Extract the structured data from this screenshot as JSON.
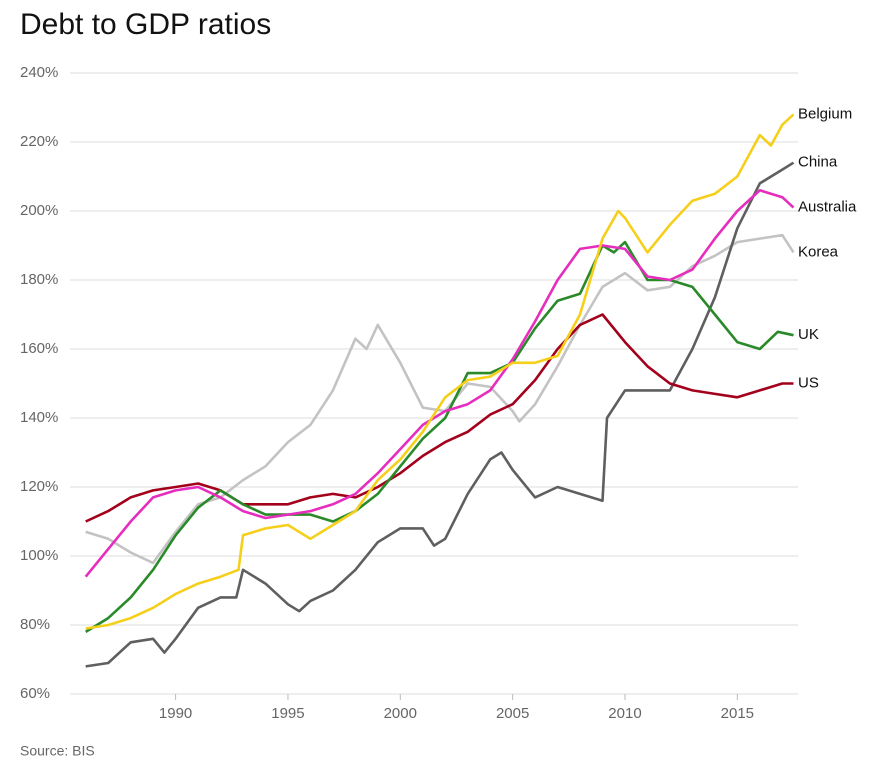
{
  "chart_data": {
    "type": "line",
    "title": "Debt to GDP ratios",
    "source": "Source: BIS",
    "xlim": [
      1985.3,
      2017.7
    ],
    "ylim": [
      60,
      240
    ],
    "xticks": [
      1990,
      1995,
      2000,
      2005,
      2010,
      2015
    ],
    "yticks": [
      {
        "value": 60,
        "label": "60%"
      },
      {
        "value": 80,
        "label": "80%"
      },
      {
        "value": 100,
        "label": "100%"
      },
      {
        "value": 120,
        "label": "120%"
      },
      {
        "value": 140,
        "label": "140%"
      },
      {
        "value": 160,
        "label": "160%"
      },
      {
        "value": 180,
        "label": "180%"
      },
      {
        "value": 200,
        "label": "200%"
      },
      {
        "value": 220,
        "label": "220%"
      },
      {
        "value": 240,
        "label": "240%"
      }
    ],
    "grid": true,
    "series": [
      {
        "name": "Korea",
        "color": "#c3c3c3",
        "x": [
          1986,
          1987,
          1988,
          1989,
          1990,
          1991,
          1992,
          1993,
          1994,
          1995,
          1996,
          1997,
          1998,
          1998.5,
          1999,
          2000,
          2001,
          2002,
          2003,
          2004,
          2005,
          2005.3,
          2006,
          2007,
          2008,
          2009,
          2010,
          2011,
          2012,
          2013,
          2014,
          2015,
          2016,
          2017,
          2017.5
        ],
        "values": [
          107,
          105,
          101,
          98,
          107,
          115,
          117,
          122,
          126,
          133,
          138,
          148,
          163,
          160,
          167,
          156,
          143,
          142,
          150,
          149,
          142,
          139,
          144,
          155,
          167,
          178,
          182,
          177,
          178,
          184,
          187,
          191,
          192,
          193,
          188
        ]
      },
      {
        "name": "China",
        "color": "#5f5f5f",
        "x": [
          1986,
          1987,
          1988,
          1989,
          1989.5,
          1990,
          1991,
          1992,
          1992.7,
          1993,
          1994,
          1995,
          1995.5,
          1996,
          1997,
          1998,
          1999,
          2000,
          2001,
          2001.5,
          2002,
          2003,
          2004,
          2004.5,
          2005,
          2006,
          2007,
          2008,
          2009,
          2009.2,
          2010,
          2011,
          2012,
          2013,
          2014,
          2015,
          2016,
          2017,
          2017.5
        ],
        "values": [
          68,
          69,
          75,
          76,
          72,
          76,
          85,
          88,
          88,
          96,
          92,
          86,
          84,
          87,
          90,
          96,
          104,
          108,
          108,
          103,
          105,
          118,
          128,
          130,
          125,
          117,
          120,
          118,
          116,
          140,
          148,
          148,
          148,
          160,
          175,
          195,
          208,
          212,
          214
        ]
      },
      {
        "name": "US",
        "color": "#a3001c",
        "x": [
          1986,
          1987,
          1988,
          1989,
          1990,
          1991,
          1992,
          1993,
          1994,
          1995,
          1996,
          1997,
          1998,
          1999,
          2000,
          2001,
          2002,
          2003,
          2004,
          2005,
          2006,
          2007,
          2008,
          2009,
          2010,
          2011,
          2012,
          2013,
          2014,
          2015,
          2016,
          2017,
          2017.5
        ],
        "values": [
          110,
          113,
          117,
          119,
          120,
          121,
          119,
          115,
          115,
          115,
          117,
          118,
          117,
          120,
          124,
          129,
          133,
          136,
          141,
          144,
          151,
          160,
          167,
          170,
          162,
          155,
          150,
          148,
          147,
          146,
          148,
          150,
          150
        ]
      },
      {
        "name": "UK",
        "color": "#2a8a2a",
        "x": [
          1986,
          1987,
          1988,
          1989,
          1990,
          1991,
          1992,
          1993,
          1994,
          1995,
          1996,
          1997,
          1998,
          1999,
          2000,
          2001,
          2002,
          2003,
          2004,
          2005,
          2006,
          2007,
          2008,
          2009,
          2009.5,
          2010,
          2011,
          2012,
          2013,
          2014,
          2015,
          2016,
          2016.8,
          2017.5
        ],
        "values": [
          78,
          82,
          88,
          96,
          106,
          114,
          119,
          115,
          112,
          112,
          112,
          110,
          113,
          118,
          126,
          134,
          140,
          153,
          153,
          156,
          166,
          174,
          176,
          190,
          188,
          191,
          180,
          180,
          178,
          170,
          162,
          160,
          165,
          164
        ]
      },
      {
        "name": "Australia",
        "color": "#e62dbe",
        "x": [
          1986,
          1987,
          1988,
          1989,
          1990,
          1991,
          1992,
          1993,
          1994,
          1995,
          1996,
          1997,
          1998,
          1999,
          2000,
          2001,
          2002,
          2003,
          2004,
          2005,
          2006,
          2007,
          2008,
          2009,
          2010,
          2011,
          2012,
          2013,
          2014,
          2015,
          2016,
          2017,
          2017.5
        ],
        "values": [
          94,
          102,
          110,
          117,
          119,
          120,
          117,
          113,
          111,
          112,
          113,
          115,
          118,
          124,
          131,
          138,
          142,
          144,
          148,
          157,
          168,
          180,
          189,
          190,
          189,
          181,
          180,
          183,
          192,
          200,
          206,
          204,
          201
        ]
      },
      {
        "name": "Belgium",
        "color": "#f5cf1a",
        "x": [
          1986,
          1987,
          1988,
          1989,
          1990,
          1991,
          1992,
          1992.8,
          1993,
          1994,
          1995,
          1996,
          1997,
          1998,
          1999,
          2000,
          2001,
          2002,
          2003,
          2004,
          2005,
          2006,
          2007,
          2008,
          2009,
          2009.7,
          2010,
          2010.5,
          2011,
          2012,
          2013,
          2014,
          2015,
          2016,
          2016.5,
          2017,
          2017.5
        ],
        "values": [
          79,
          80,
          82,
          85,
          89,
          92,
          94,
          96,
          106,
          108,
          109,
          105,
          109,
          113,
          122,
          128,
          136,
          146,
          151,
          152,
          156,
          156,
          158,
          170,
          192,
          200,
          198,
          193,
          188,
          196,
          203,
          205,
          210,
          222,
          219,
          225,
          228
        ]
      }
    ]
  }
}
